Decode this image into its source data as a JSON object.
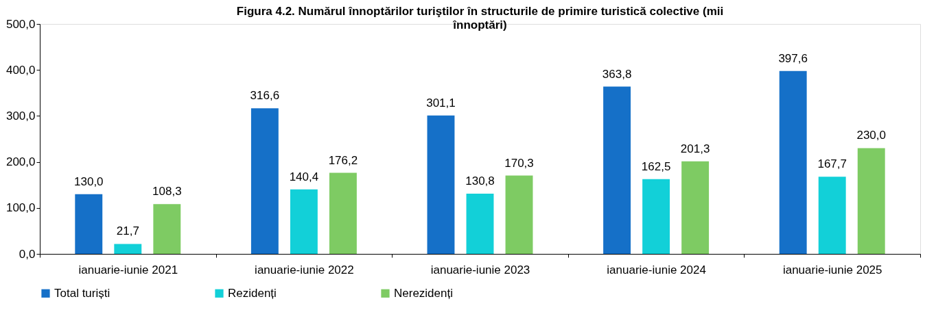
{
  "chart_data": {
    "type": "bar",
    "title": "Figura 4.2. Numărul înnoptărilor turiştilor în structurile de primire turistică colective (mii înnoptări)",
    "categories": [
      "ianuarie-iunie 2021",
      "ianuarie-iunie 2022",
      "ianuarie-iunie 2023",
      "ianuarie-iunie 2024",
      "ianuarie-iunie 2025"
    ],
    "series": [
      {
        "name": "Total turiști",
        "color": "#1570c8",
        "values": [
          130.0,
          316.6,
          301.1,
          363.8,
          397.6
        ],
        "value_labels": [
          "130,0",
          "316,6",
          "301,1",
          "363,8",
          "397,6"
        ]
      },
      {
        "name": "Rezidenți",
        "color": "#12d0d8",
        "values": [
          21.7,
          140.4,
          130.8,
          162.5,
          167.7
        ],
        "value_labels": [
          "21,7",
          "140,4",
          "130,8",
          "162,5",
          "167,7"
        ]
      },
      {
        "name": "Nerezidenți",
        "color": "#7ecb63",
        "values": [
          108.3,
          176.2,
          170.3,
          201.3,
          230.0
        ],
        "value_labels": [
          "108,3",
          "176,2",
          "170,3",
          "201,3",
          "230,0"
        ]
      }
    ],
    "ylim": [
      0,
      500
    ],
    "yticks": [
      {
        "value": 0,
        "label": "0,0"
      },
      {
        "value": 100,
        "label": "100,0"
      },
      {
        "value": 200,
        "label": "200,0"
      },
      {
        "value": 300,
        "label": "300,0"
      },
      {
        "value": 400,
        "label": "400,0"
      },
      {
        "value": 500,
        "label": "500,0"
      }
    ],
    "grid": false,
    "legend": "bottom"
  }
}
